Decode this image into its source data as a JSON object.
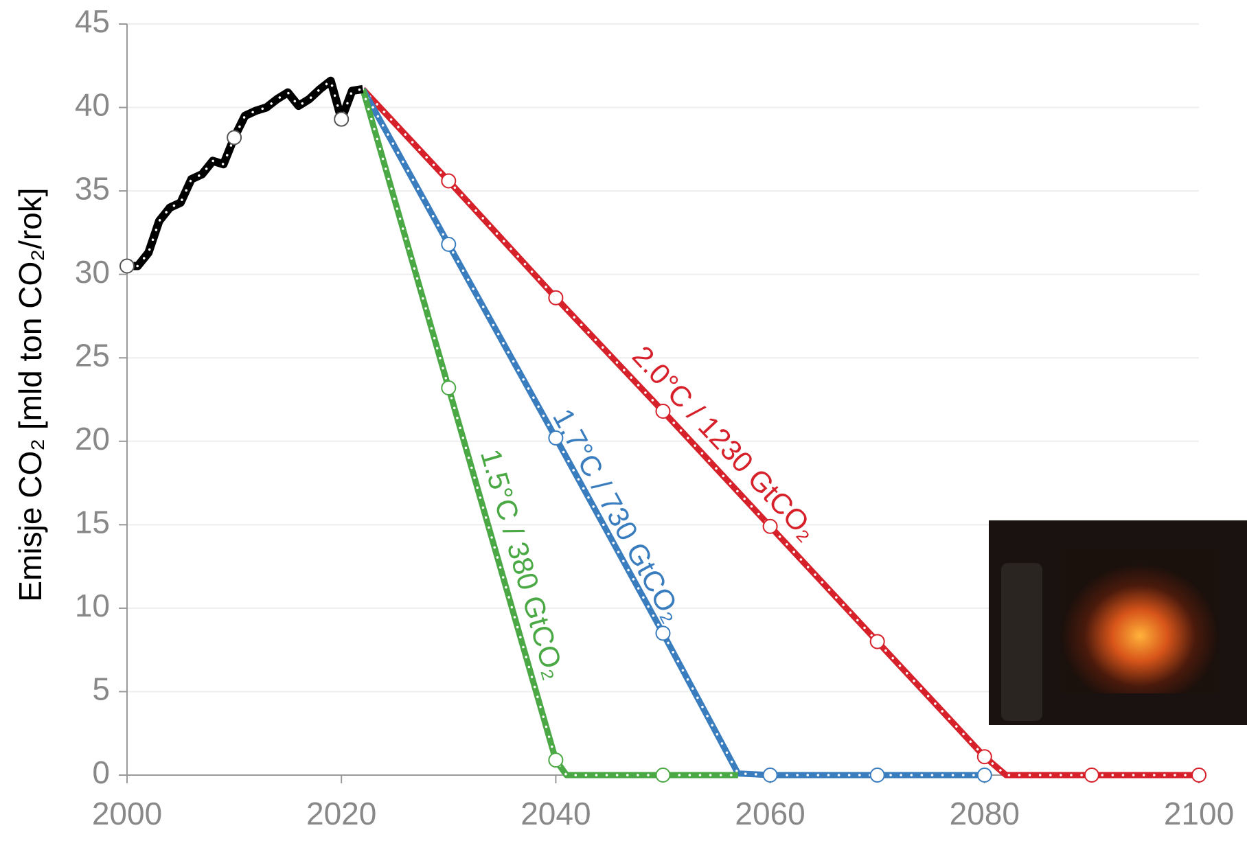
{
  "chart_data": {
    "type": "line",
    "y_label": "Emisje CO₂ [mld ton CO₂/rok]",
    "xlim": [
      2000,
      2100
    ],
    "xticks": [
      2000,
      2020,
      2040,
      2060,
      2080,
      2100
    ],
    "ylim": [
      0,
      45
    ],
    "yticks": [
      0,
      5,
      10,
      15,
      20,
      25,
      30,
      35,
      40,
      45
    ],
    "grid": true,
    "series": [
      {
        "name": "2.0°C / 1230 GtCO₂",
        "color": "#d6202a",
        "x": [
          2022,
          2030,
          2040,
          2050,
          2060,
          2070,
          2080,
          2082,
          2090,
          2100
        ],
        "values": [
          41.1,
          35.6,
          28.6,
          21.8,
          14.9,
          8.0,
          1.1,
          0,
          0,
          0
        ]
      },
      {
        "name": "1.7°C / 730 GtCO₂",
        "color": "#3a7dbf",
        "x": [
          2022,
          2030,
          2040,
          2050,
          2057,
          2060,
          2070,
          2080
        ],
        "values": [
          41.1,
          31.8,
          20.2,
          8.5,
          0.1,
          0,
          0,
          0
        ]
      },
      {
        "name": "1.5°C / 380 GtCO₂",
        "color": "#4aa845",
        "x": [
          2022,
          2030,
          2040,
          2041,
          2050,
          2057
        ],
        "values": [
          41.1,
          23.2,
          0.9,
          0,
          0,
          0
        ]
      },
      {
        "name": "",
        "color": "#000000",
        "x": [
          2000,
          2001,
          2002,
          2003,
          2004,
          2005,
          2006,
          2007,
          2008,
          2009,
          2010,
          2011,
          2012,
          2013,
          2014,
          2015,
          2016,
          2017,
          2018,
          2019,
          2020,
          2021,
          2022
        ],
        "values": [
          30.5,
          30.5,
          31.3,
          33.2,
          34,
          34.3,
          35.7,
          36,
          36.8,
          36.6,
          38.2,
          39.5,
          39.8,
          40,
          40.5,
          40.9,
          40.1,
          40.5,
          41.1,
          41.6,
          39.3,
          41.0,
          41.1
        ]
      }
    ]
  }
}
